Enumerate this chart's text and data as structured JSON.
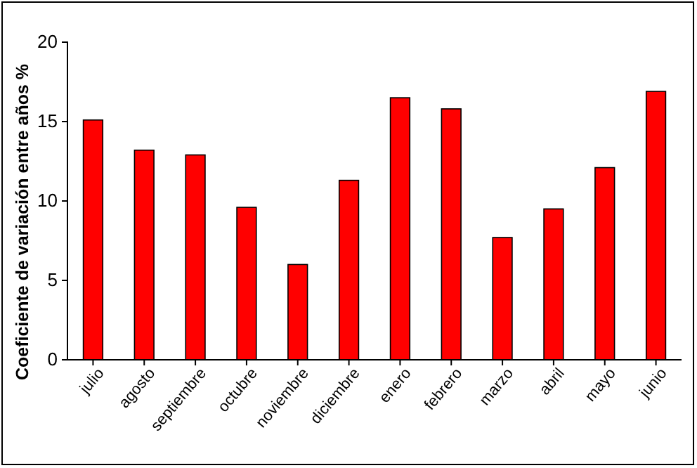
{
  "chart_data": {
    "type": "bar",
    "ylabel": "Coeficiente de variación entre años %",
    "categories": [
      "julio",
      "agosto",
      "septiembre",
      "octubre",
      "noviembre",
      "diciembre",
      "enero",
      "febrero",
      "marzo",
      "abril",
      "mayo",
      "junio"
    ],
    "values": [
      15.1,
      13.2,
      12.9,
      9.6,
      6.0,
      11.3,
      16.5,
      15.8,
      7.7,
      9.5,
      12.1,
      16.9
    ],
    "color": "#ff0000",
    "ylim": [
      0,
      20
    ],
    "yticks": [
      0,
      5,
      10,
      15,
      20
    ],
    "grid": false
  }
}
